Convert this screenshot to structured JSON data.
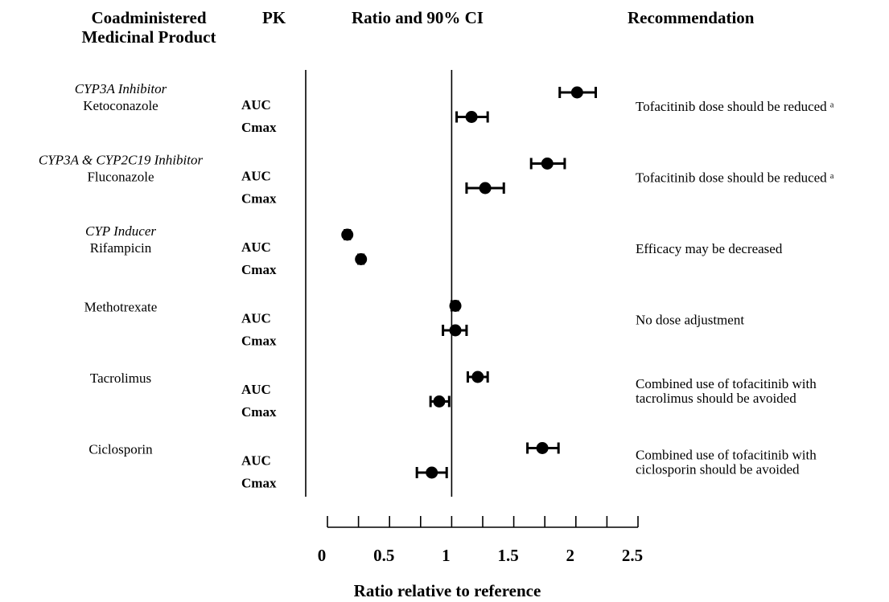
{
  "headers": {
    "product": [
      "Coadministered",
      "Medicinal Product"
    ],
    "pk": "PK",
    "ratio": "Ratio and 90% CI",
    "recommendation": "Recommendation"
  },
  "chart_data": {
    "type": "forest",
    "xlabel": "Ratio relative to reference",
    "xlim": [
      0,
      2.5
    ],
    "x_ticks": [
      0,
      0.5,
      1,
      1.5,
      2,
      2.5
    ],
    "x_tick_labels": [
      "0",
      "0.5",
      "1",
      "1.5",
      "2",
      "2.5"
    ],
    "minor_tick_step": 0.25,
    "reference_line": 1.0,
    "groups": [
      {
        "class": "CYP3A Inhibitor",
        "product": "Ketoconazole",
        "recommendation": [
          "Tofacitinib dose should be reduced ᵃ"
        ],
        "rows": [
          {
            "pk": "AUC",
            "ratio": 2.01,
            "ci": [
              1.87,
              2.16
            ]
          },
          {
            "pk": "Cmax",
            "ratio": 1.16,
            "ci": [
              1.04,
              1.29
            ]
          }
        ]
      },
      {
        "class": "CYP3A & CYP2C19 Inhibitor",
        "product": "Fluconazole",
        "recommendation": [
          "Tofacitinib dose should be reduced ᵃ"
        ],
        "rows": [
          {
            "pk": "AUC",
            "ratio": 1.77,
            "ci": [
              1.64,
              1.91
            ]
          },
          {
            "pk": "Cmax",
            "ratio": 1.27,
            "ci": [
              1.12,
              1.42
            ]
          }
        ]
      },
      {
        "class": "CYP Inducer",
        "product": "Rifampicin",
        "recommendation": [
          "Efficacy may be decreased"
        ],
        "rows": [
          {
            "pk": "AUC",
            "ratio": 0.16,
            "ci": [
              0.14,
              0.18
            ]
          },
          {
            "pk": "Cmax",
            "ratio": 0.27,
            "ci": [
              0.25,
              0.29
            ]
          }
        ]
      },
      {
        "class": "",
        "product": "Methotrexate",
        "recommendation": [
          "No dose adjustment"
        ],
        "rows": [
          {
            "pk": "AUC",
            "ratio": 1.03,
            "ci": [
              1.0,
              1.05
            ]
          },
          {
            "pk": "Cmax",
            "ratio": 1.03,
            "ci": [
              0.93,
              1.12
            ]
          }
        ]
      },
      {
        "class": "",
        "product": "Tacrolimus",
        "recommendation": [
          "Combined use of tofacitinib with",
          "tacrolimus should be avoided"
        ],
        "rows": [
          {
            "pk": "AUC",
            "ratio": 1.21,
            "ci": [
              1.13,
              1.29
            ]
          },
          {
            "pk": "Cmax",
            "ratio": 0.9,
            "ci": [
              0.83,
              0.98
            ]
          }
        ]
      },
      {
        "class": "",
        "product": "Ciclosporin",
        "recommendation": [
          "Combined use of tofacitinib with",
          "ciclosporin should be avoided"
        ],
        "rows": [
          {
            "pk": "AUC",
            "ratio": 1.73,
            "ci": [
              1.61,
              1.86
            ]
          },
          {
            "pk": "Cmax",
            "ratio": 0.84,
            "ci": [
              0.72,
              0.96
            ]
          }
        ]
      }
    ]
  }
}
